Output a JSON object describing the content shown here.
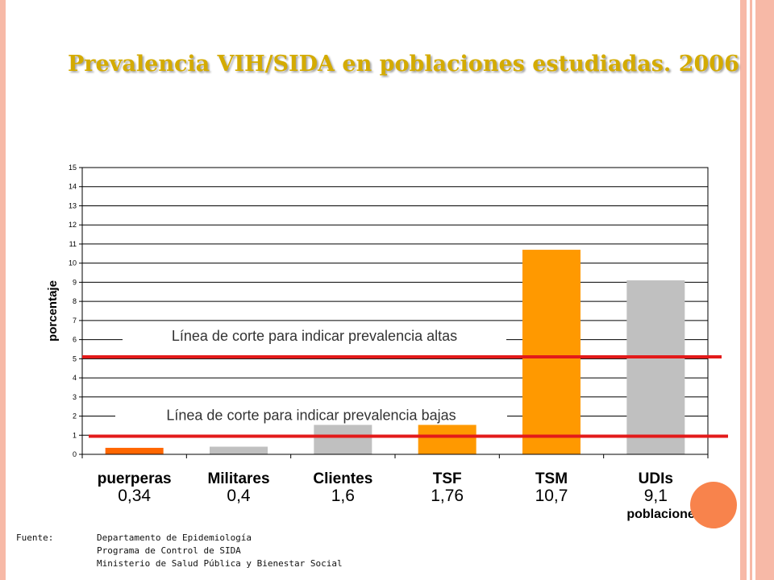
{
  "slide": {
    "title": "Prevalencia VIH/SIDA en poblaciones estudiadas. 2006",
    "colors": {
      "title": "#d4ab00",
      "frame_strip": "#f7b9a7",
      "accent_circle": "#f8834c"
    }
  },
  "chart_data": {
    "type": "bar",
    "categories": [
      "puerperas",
      "Militares",
      "Clientes",
      "TSF",
      "TSM",
      "UDIs"
    ],
    "values": [
      0.34,
      0.4,
      1.6,
      1.76,
      10.7,
      9.1
    ],
    "value_labels": [
      "0,34",
      "0,4",
      "1,6",
      "1,76",
      "10,7",
      "9,1"
    ],
    "bar_colors": [
      "#ff6600",
      "#c0c0c0",
      "#c0c0c0",
      "#ff9900",
      "#ff9900",
      "#c0c0c0"
    ],
    "ylabel": "porcentaje",
    "xlabel": "poblaciones",
    "ylim": [
      0,
      15
    ],
    "yticks": [
      0,
      1,
      2,
      3,
      4,
      5,
      6,
      7,
      8,
      9,
      10,
      11,
      12,
      13,
      14,
      15
    ],
    "grid": true,
    "cutoff_lines": [
      {
        "value": 5.1,
        "label": "Línea de corte para indicar prevalencia altas",
        "color": "#e31a1a"
      },
      {
        "value": 0.95,
        "label": "Línea de corte para indicar prevalencia bajas",
        "color": "#e31a1a"
      }
    ]
  },
  "source": {
    "label": "Fuente:",
    "lines": [
      "Departamento de Epidemiología",
      "Programa de Control  de  SIDA",
      "Ministerio de Salud Pública y Bienestar Social"
    ]
  }
}
